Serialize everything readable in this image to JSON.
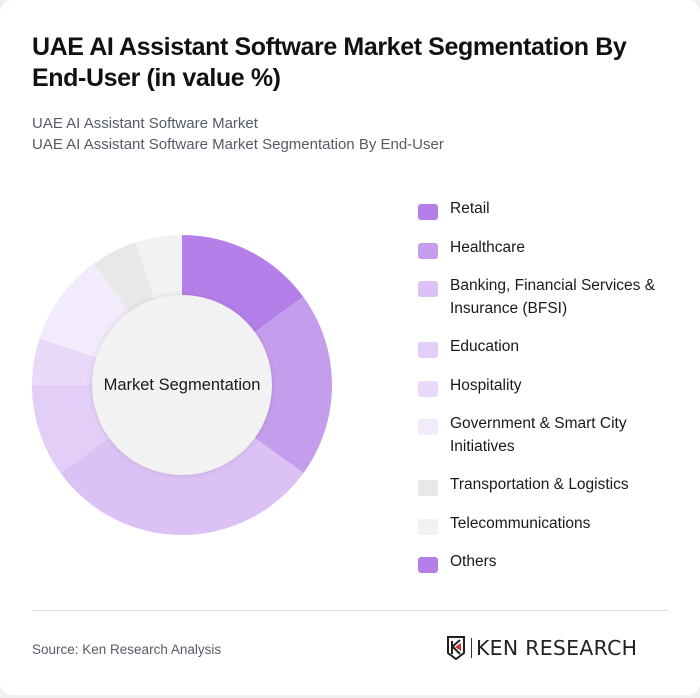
{
  "header": {
    "title": "UAE AI Assistant Software Market Segmentation By End-User (in value %)",
    "subtitle_line1": "UAE AI Assistant Software Market",
    "subtitle_line2": "UAE AI Assistant Software Market Segmentation By End-User"
  },
  "chart_center_label": "Market Segmentation",
  "legend": [
    {
      "label": "Retail",
      "color": "#b57fe9"
    },
    {
      "label": "Healthcare",
      "color": "#c59ded"
    },
    {
      "label": "Banking, Financial Services & Insurance (BFSI)",
      "color": "#dcc1f5"
    },
    {
      "label": "Education",
      "color": "#e3cef7"
    },
    {
      "label": "Hospitality",
      "color": "#ead9f9"
    },
    {
      "label": "Government & Smart City Initiatives",
      "color": "#f2ebfb"
    },
    {
      "label": "Transportation & Logistics",
      "color": "#e8e8e8"
    },
    {
      "label": "Telecommunications",
      "color": "#f2f2f2"
    },
    {
      "label": "Others",
      "color": "#b57fe9"
    }
  ],
  "footer": {
    "source": "Source: Ken Research Analysis",
    "logo_text": "KEN RESEARCH"
  },
  "chart_data": {
    "type": "pie",
    "subtype": "donut",
    "title": "UAE AI Assistant Software Market Segmentation By End-User (in value %)",
    "center_label": "Market Segmentation",
    "categories": [
      "Retail",
      "Healthcare",
      "Banking, Financial Services & Insurance (BFSI)",
      "Education",
      "Hospitality",
      "Government & Smart City Initiatives",
      "Transportation & Logistics",
      "Telecommunications",
      "Others"
    ],
    "values": [
      15,
      20,
      30,
      10,
      5,
      10,
      5,
      5,
      0
    ],
    "colors": [
      "#b57fe9",
      "#c59ded",
      "#dcc1f5",
      "#e3cef7",
      "#ead9f9",
      "#f2ebfb",
      "#e8e8e8",
      "#f2f2f2",
      "#b57fe9"
    ],
    "unit": "%",
    "legend_position": "right"
  }
}
